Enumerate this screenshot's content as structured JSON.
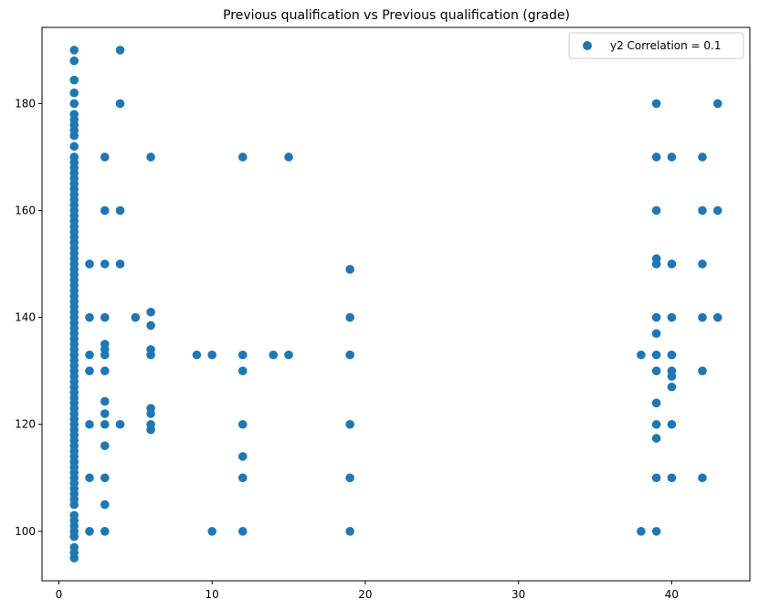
{
  "chart_data": {
    "type": "scatter",
    "title": "Previous qualification vs Previous qualification (grade)",
    "xlabel": "",
    "ylabel": "",
    "xlim": [
      -1.1,
      45.1
    ],
    "ylim": [
      90.75,
      194.25
    ],
    "xticks": [
      0,
      10,
      20,
      30,
      40
    ],
    "yticks": [
      100,
      120,
      140,
      160,
      180
    ],
    "grid": false,
    "legend": {
      "position": "top-right"
    },
    "series": [
      {
        "name": "y2 Correlation = 0.1",
        "color": "#1f77b4",
        "points": [
          [
            1,
            95
          ],
          [
            1,
            96
          ],
          [
            1,
            97
          ],
          [
            1,
            99
          ],
          [
            1,
            100
          ],
          [
            1,
            101
          ],
          [
            1,
            102
          ],
          [
            1,
            103
          ],
          [
            1,
            105
          ],
          [
            1,
            106
          ],
          [
            1,
            107
          ],
          [
            1,
            108
          ],
          [
            1,
            109
          ],
          [
            1,
            110
          ],
          [
            1,
            111
          ],
          [
            1,
            112
          ],
          [
            1,
            113
          ],
          [
            1,
            114
          ],
          [
            1,
            115
          ],
          [
            1,
            116
          ],
          [
            1,
            117
          ],
          [
            1,
            118
          ],
          [
            1,
            119
          ],
          [
            1,
            120
          ],
          [
            1,
            121
          ],
          [
            1,
            122
          ],
          [
            1,
            123
          ],
          [
            1,
            124
          ],
          [
            1,
            125
          ],
          [
            1,
            126
          ],
          [
            1,
            127
          ],
          [
            1,
            128
          ],
          [
            1,
            129
          ],
          [
            1,
            130
          ],
          [
            1,
            131
          ],
          [
            1,
            132
          ],
          [
            1,
            133
          ],
          [
            1,
            134
          ],
          [
            1,
            135
          ],
          [
            1,
            136
          ],
          [
            1,
            137
          ],
          [
            1,
            138
          ],
          [
            1,
            139
          ],
          [
            1,
            140
          ],
          [
            1,
            141
          ],
          [
            1,
            142
          ],
          [
            1,
            143
          ],
          [
            1,
            144
          ],
          [
            1,
            145
          ],
          [
            1,
            146
          ],
          [
            1,
            147
          ],
          [
            1,
            148
          ],
          [
            1,
            149
          ],
          [
            1,
            150
          ],
          [
            1,
            151
          ],
          [
            1,
            152
          ],
          [
            1,
            153
          ],
          [
            1,
            154
          ],
          [
            1,
            155
          ],
          [
            1,
            156
          ],
          [
            1,
            157
          ],
          [
            1,
            158
          ],
          [
            1,
            159
          ],
          [
            1,
            160
          ],
          [
            1,
            161
          ],
          [
            1,
            162
          ],
          [
            1,
            163
          ],
          [
            1,
            164
          ],
          [
            1,
            165
          ],
          [
            1,
            166
          ],
          [
            1,
            167
          ],
          [
            1,
            168
          ],
          [
            1,
            169
          ],
          [
            1,
            170
          ],
          [
            1,
            172
          ],
          [
            1,
            174
          ],
          [
            1,
            175
          ],
          [
            1,
            176
          ],
          [
            1,
            177
          ],
          [
            1,
            178
          ],
          [
            1,
            180
          ],
          [
            1,
            182
          ],
          [
            1,
            184.4
          ],
          [
            1,
            188
          ],
          [
            1,
            190
          ],
          [
            2,
            100
          ],
          [
            2,
            110
          ],
          [
            2,
            120
          ],
          [
            2,
            130
          ],
          [
            2,
            133
          ],
          [
            2,
            140
          ],
          [
            2,
            150
          ],
          [
            3,
            100
          ],
          [
            3,
            105
          ],
          [
            3,
            110
          ],
          [
            3,
            116
          ],
          [
            3,
            120
          ],
          [
            3,
            122
          ],
          [
            3,
            124.3
          ],
          [
            3,
            130
          ],
          [
            3,
            133
          ],
          [
            3,
            134
          ],
          [
            3,
            135
          ],
          [
            3,
            140
          ],
          [
            3,
            150
          ],
          [
            3,
            160
          ],
          [
            3,
            170
          ],
          [
            4,
            120
          ],
          [
            4,
            150
          ],
          [
            4,
            160
          ],
          [
            4,
            180
          ],
          [
            4,
            190
          ],
          [
            5,
            140
          ],
          [
            6,
            119
          ],
          [
            6,
            120
          ],
          [
            6,
            122
          ],
          [
            6,
            123
          ],
          [
            6,
            133
          ],
          [
            6,
            134
          ],
          [
            6,
            138.5
          ],
          [
            6,
            141
          ],
          [
            6,
            170
          ],
          [
            9,
            133
          ],
          [
            10,
            100
          ],
          [
            10,
            133
          ],
          [
            12,
            100
          ],
          [
            12,
            110
          ],
          [
            12,
            114
          ],
          [
            12,
            120
          ],
          [
            12,
            130
          ],
          [
            12,
            133
          ],
          [
            12,
            170
          ],
          [
            14,
            133
          ],
          [
            15,
            133
          ],
          [
            15,
            170
          ],
          [
            19,
            100
          ],
          [
            19,
            110
          ],
          [
            19,
            120
          ],
          [
            19,
            133
          ],
          [
            19,
            140
          ],
          [
            19,
            149
          ],
          [
            38,
            100
          ],
          [
            38,
            133
          ],
          [
            39,
            100
          ],
          [
            39,
            110
          ],
          [
            39,
            117.4
          ],
          [
            39,
            120
          ],
          [
            39,
            124
          ],
          [
            39,
            130
          ],
          [
            39,
            133
          ],
          [
            39,
            137
          ],
          [
            39,
            140
          ],
          [
            39,
            150
          ],
          [
            39,
            151
          ],
          [
            39,
            160
          ],
          [
            39,
            170
          ],
          [
            39,
            180
          ],
          [
            40,
            110
          ],
          [
            40,
            120
          ],
          [
            40,
            127
          ],
          [
            40,
            129
          ],
          [
            40,
            130
          ],
          [
            40,
            133
          ],
          [
            40,
            140
          ],
          [
            40,
            150
          ],
          [
            40,
            170
          ],
          [
            42,
            110
          ],
          [
            42,
            130
          ],
          [
            42,
            140
          ],
          [
            42,
            150
          ],
          [
            42,
            160
          ],
          [
            42,
            170
          ],
          [
            43,
            140
          ],
          [
            43,
            160
          ],
          [
            43,
            180
          ]
        ]
      }
    ]
  }
}
